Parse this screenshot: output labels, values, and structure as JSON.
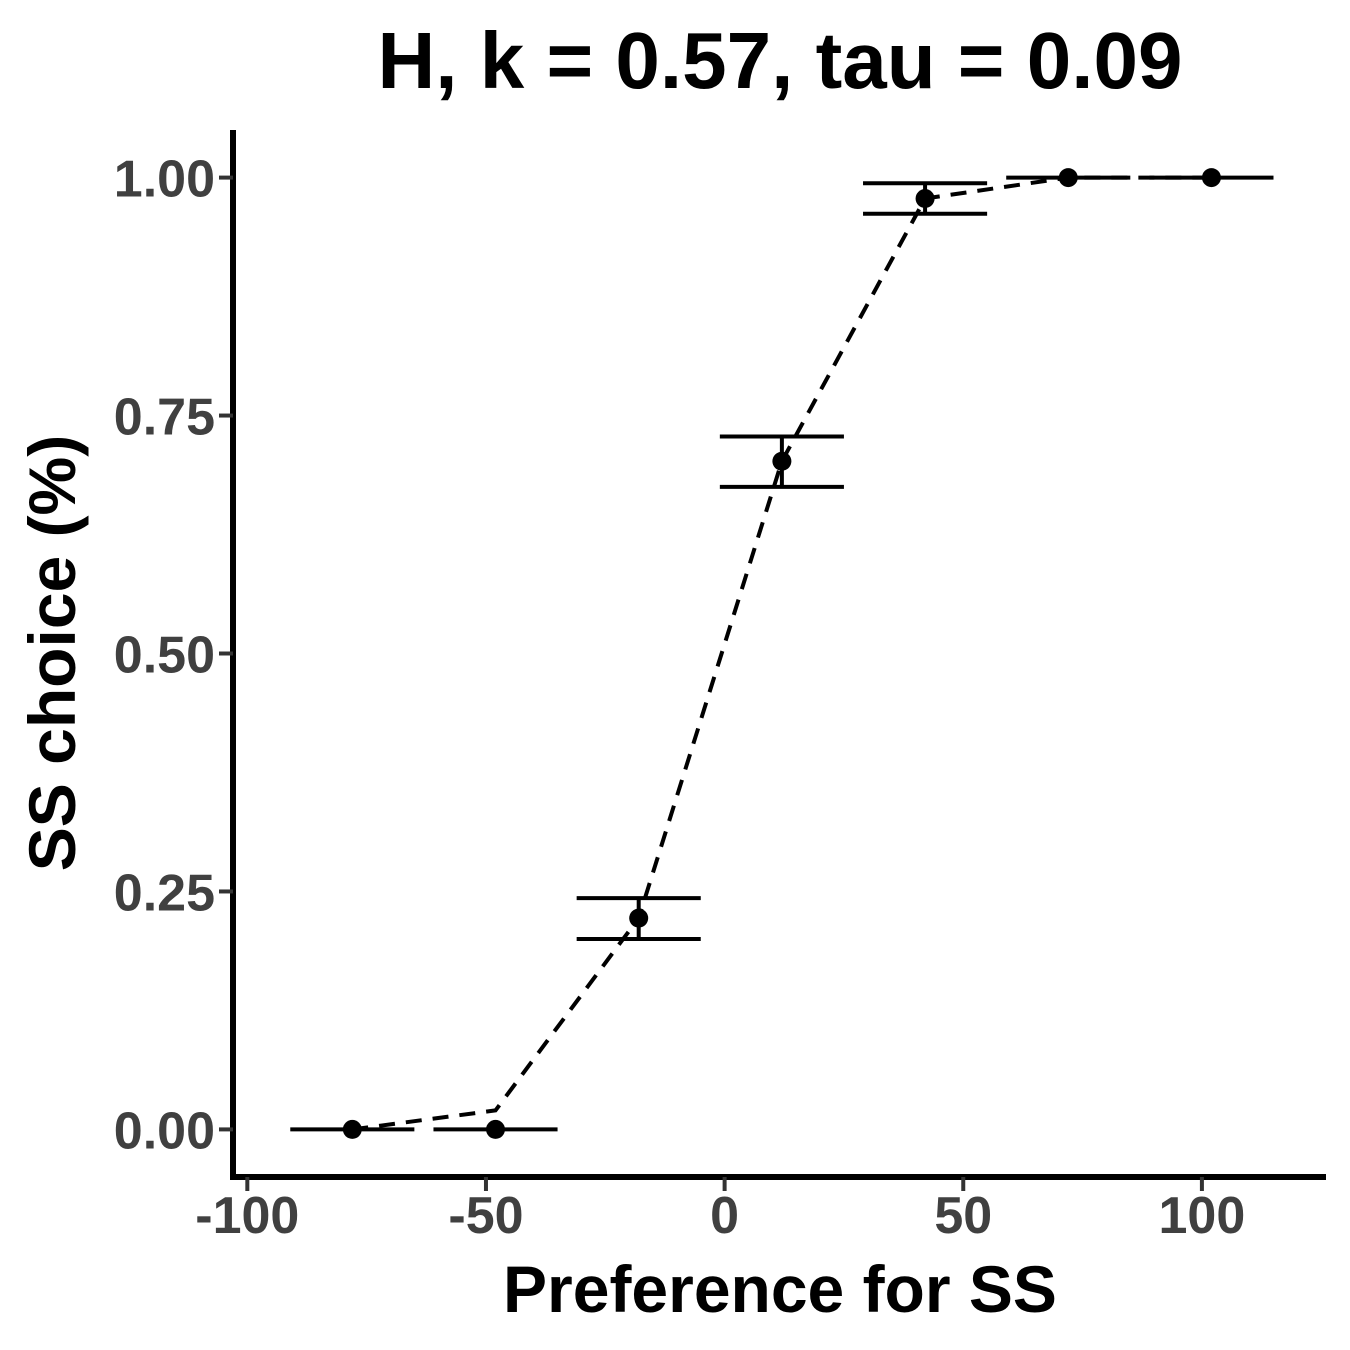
{
  "chart_data": {
    "type": "scatter",
    "title": "H, k = 0.57, tau = 0.09",
    "xlabel": "Preference for SS",
    "ylabel": "SS choice (%)",
    "xlim": [
      -103,
      126
    ],
    "ylim": [
      -0.05,
      1.05
    ],
    "xticks": [
      -100,
      -50,
      0,
      50,
      100
    ],
    "xtick_labels": [
      "-100",
      "-50",
      "0",
      "50",
      "100"
    ],
    "yticks": [
      0,
      0.25,
      0.5,
      0.75,
      1.0
    ],
    "ytick_labels": [
      "0.00",
      "0.25",
      "0.50",
      "0.75",
      "1.00"
    ],
    "grid": false,
    "series": [
      {
        "style": "points-with-error-bars",
        "color": "#000000",
        "x": [
          -78,
          -48,
          -18,
          12,
          42,
          72,
          102
        ],
        "y": [
          0.0,
          0.0,
          0.222,
          0.702,
          0.978,
          1.0,
          1.0
        ],
        "ymin": [
          0.0,
          0.0,
          0.2,
          0.675,
          0.962,
          1.0,
          1.0
        ],
        "ymax": [
          0.0,
          0.0,
          0.243,
          0.728,
          0.994,
          1.0,
          1.0
        ],
        "xerr_left": [
          -91,
          -61,
          -31,
          -1,
          29,
          59,
          89
        ],
        "xerr_right": [
          -65,
          -35,
          -5,
          25,
          55,
          85,
          115
        ]
      },
      {
        "style": "dashed-line",
        "color": "#000000",
        "x": [
          -78,
          -48,
          -18,
          12,
          42,
          72,
          102
        ],
        "y": [
          0.0,
          0.02,
          0.222,
          0.702,
          0.978,
          1.0,
          1.0
        ]
      }
    ]
  }
}
